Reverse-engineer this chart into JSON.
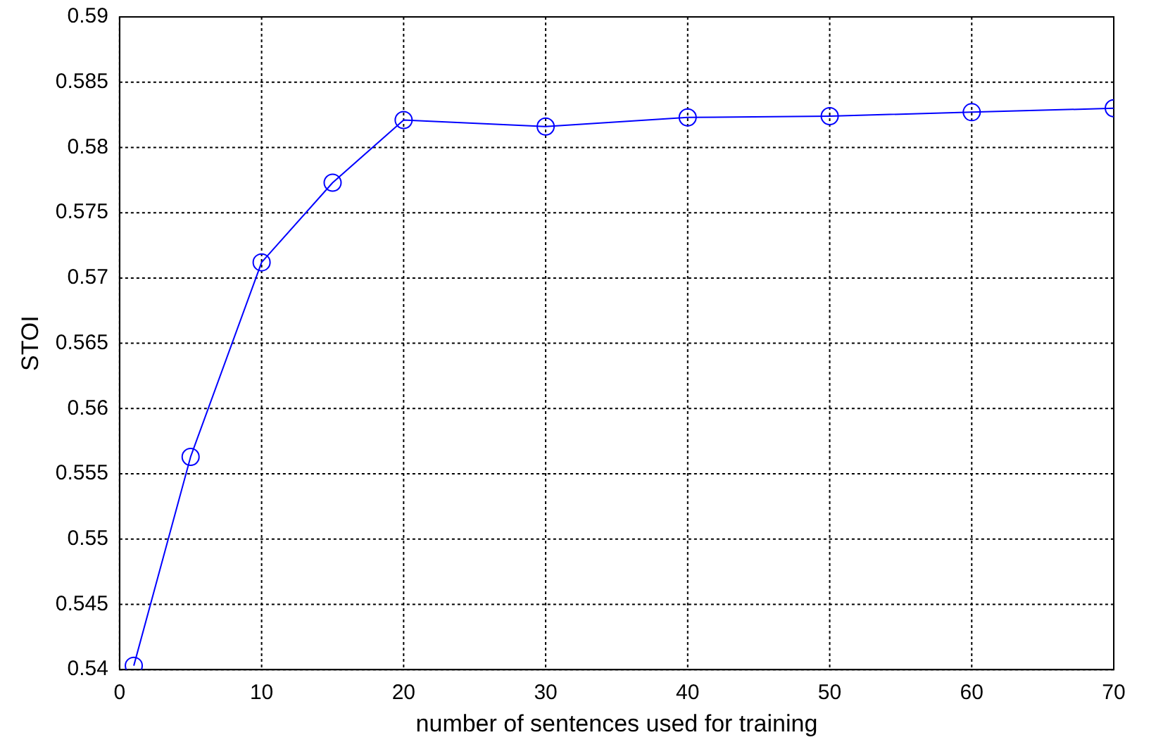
{
  "chart_data": {
    "type": "line",
    "xlabel": "number of sentences used for training",
    "ylabel": "STOI",
    "x": [
      1,
      5,
      10,
      15,
      20,
      30,
      40,
      50,
      60,
      70
    ],
    "series": [
      {
        "color": "#0000ff",
        "values": [
          0.5403,
          0.5563,
          0.5712,
          0.5773,
          0.5821,
          0.5816,
          0.5823,
          0.5824,
          0.5827,
          0.583
        ]
      }
    ],
    "xlim": [
      0,
      70
    ],
    "xticks": [
      0,
      10,
      20,
      30,
      40,
      50,
      60,
      70
    ],
    "ylim": [
      0.54,
      0.59
    ],
    "yticks": [
      0.54,
      0.545,
      0.55,
      0.555,
      0.56,
      0.565,
      0.57,
      0.575,
      0.58,
      0.585,
      0.59
    ],
    "grid": true,
    "marker": "circle",
    "line_style": "solid",
    "legend": false
  }
}
